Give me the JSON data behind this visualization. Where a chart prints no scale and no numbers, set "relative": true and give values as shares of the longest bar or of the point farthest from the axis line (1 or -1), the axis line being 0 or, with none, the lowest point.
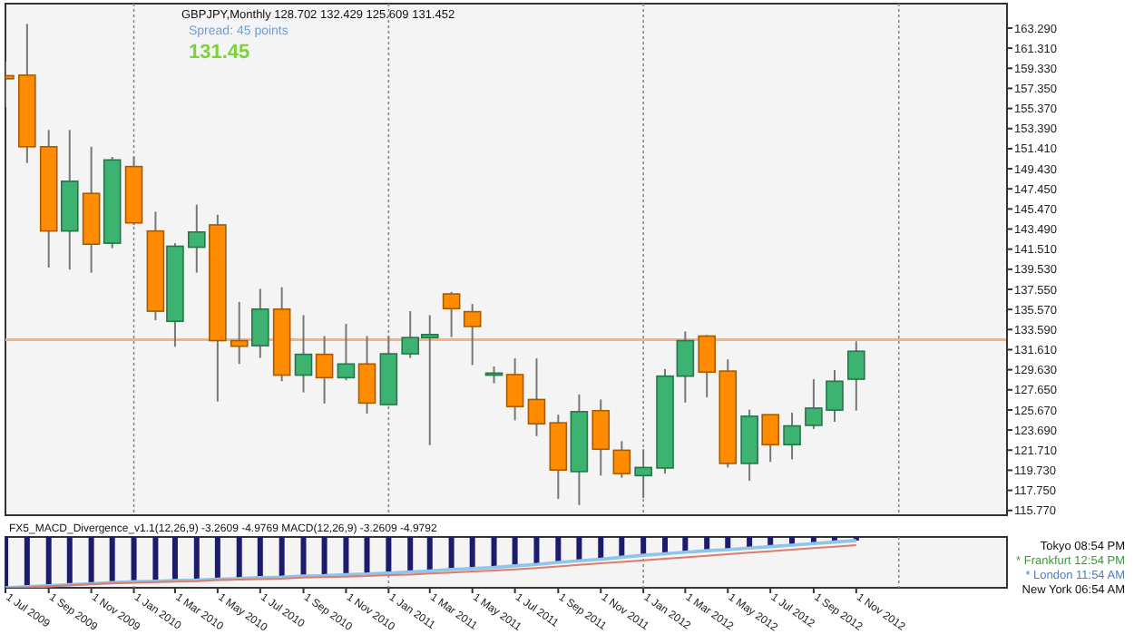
{
  "chart_data": [
    {
      "type": "candlestick",
      "title": "GBPJPY,Monthly 128.702 132.429 125.609 131.452",
      "annotations": [
        "Spread: 45 points",
        "131.45"
      ],
      "x": [
        "2009-07",
        "2009-08",
        "2009-09",
        "2009-10",
        "2009-11",
        "2009-12",
        "2010-01",
        "2010-02",
        "2010-03",
        "2010-04",
        "2010-05",
        "2010-06",
        "2010-07",
        "2010-08",
        "2010-09",
        "2010-10",
        "2010-11",
        "2010-12",
        "2011-01",
        "2011-02",
        "2011-03",
        "2011-04",
        "2011-05",
        "2011-06",
        "2011-07",
        "2011-08",
        "2011-09",
        "2011-10",
        "2011-11",
        "2011-12",
        "2012-01",
        "2012-02",
        "2012-03",
        "2012-04",
        "2012-05",
        "2012-06",
        "2012-07",
        "2012-08",
        "2012-09",
        "2012-10",
        "2012-11"
      ],
      "ohlc": [
        [
          158.6,
          160.0,
          155.5,
          158.3
        ],
        [
          158.65,
          163.7,
          150.0,
          151.6
        ],
        [
          151.6,
          153.25,
          139.7,
          143.3
        ],
        [
          143.3,
          153.25,
          139.5,
          148.2
        ],
        [
          147.0,
          151.6,
          139.2,
          142.0
        ],
        [
          142.1,
          150.6,
          141.6,
          150.3
        ],
        [
          149.65,
          150.6,
          143.9,
          144.1
        ],
        [
          143.3,
          145.2,
          134.5,
          135.4
        ],
        [
          134.4,
          142.1,
          131.9,
          141.8
        ],
        [
          141.7,
          145.9,
          139.2,
          143.2
        ],
        [
          143.9,
          144.9,
          126.5,
          132.5
        ],
        [
          132.5,
          136.3,
          130.2,
          131.95
        ],
        [
          132.0,
          137.6,
          130.8,
          135.6
        ],
        [
          135.6,
          137.75,
          128.5,
          129.1
        ],
        [
          129.1,
          135.0,
          127.4,
          131.15
        ],
        [
          131.15,
          132.95,
          126.3,
          128.85
        ],
        [
          128.85,
          134.15,
          128.6,
          130.2
        ],
        [
          130.2,
          132.95,
          125.3,
          126.35
        ],
        [
          126.2,
          132.95,
          126.1,
          131.2
        ],
        [
          131.2,
          135.4,
          130.8,
          132.8
        ],
        [
          132.8,
          135.0,
          122.2,
          133.1
        ],
        [
          137.1,
          137.3,
          132.85,
          135.65
        ],
        [
          135.35,
          136.1,
          130.1,
          133.9
        ],
        [
          129.1,
          129.95,
          128.3,
          129.3
        ],
        [
          129.15,
          130.75,
          124.65,
          126.0
        ],
        [
          126.7,
          130.75,
          123.1,
          124.3
        ],
        [
          124.4,
          125.2,
          116.9,
          119.75
        ],
        [
          119.6,
          127.2,
          116.3,
          125.5
        ],
        [
          125.6,
          126.7,
          119.2,
          121.8
        ],
        [
          121.7,
          122.6,
          119.0,
          119.4
        ],
        [
          119.2,
          121.8,
          117.0,
          120.0
        ],
        [
          119.95,
          129.7,
          119.4,
          129.0
        ],
        [
          129.0,
          133.4,
          126.4,
          132.5
        ],
        [
          132.95,
          133.05,
          126.9,
          129.4
        ],
        [
          129.5,
          130.65,
          120.0,
          120.4
        ],
        [
          120.4,
          125.7,
          118.7,
          125.05
        ],
        [
          125.2,
          125.2,
          120.55,
          122.25
        ],
        [
          122.25,
          125.4,
          120.8,
          124.1
        ],
        [
          124.15,
          128.7,
          123.8,
          125.85
        ],
        [
          125.65,
          129.6,
          124.5,
          128.5
        ],
        [
          128.702,
          132.429,
          125.609,
          131.452
        ]
      ],
      "colors": [
        "#ff8c00",
        "#ff8c00",
        "#ff8c00",
        "#3cb371",
        "#ff8c00",
        "#3cb371",
        "#ff8c00",
        "#ff8c00",
        "#3cb371",
        "#3cb371",
        "#ff8c00",
        "#ff8c00",
        "#3cb371",
        "#ff8c00",
        "#3cb371",
        "#ff8c00",
        "#3cb371",
        "#ff8c00",
        "#3cb371",
        "#3cb371",
        "#3cb371",
        "#ff8c00",
        "#ff8c00",
        "#3cb371",
        "#ff8c00",
        "#ff8c00",
        "#ff8c00",
        "#3cb371",
        "#ff8c00",
        "#ff8c00",
        "#3cb371",
        "#3cb371",
        "#3cb371",
        "#ff8c00",
        "#ff8c00",
        "#3cb371",
        "#ff8c00",
        "#3cb371",
        "#3cb371",
        "#3cb371",
        "#3cb371"
      ],
      "xlim": [
        "2009-07-01",
        "2013-06-05"
      ],
      "ylim": [
        115.3,
        165.7
      ],
      "yticks": [
        {
          "value": 115.77,
          "label": "115.770"
        },
        {
          "value": 117.75,
          "label": "117.750"
        },
        {
          "value": 119.73,
          "label": "119.730"
        },
        {
          "value": 121.71,
          "label": "121.710"
        },
        {
          "value": 123.69,
          "label": "123.690"
        },
        {
          "value": 125.67,
          "label": "125.670"
        },
        {
          "value": 127.65,
          "label": "127.650"
        },
        {
          "value": 129.63,
          "label": "129.630"
        },
        {
          "value": 131.61,
          "label": "131.610"
        },
        {
          "value": 133.59,
          "label": "133.590"
        },
        {
          "value": 135.57,
          "label": "135.570"
        },
        {
          "value": 137.55,
          "label": "137.550"
        },
        {
          "value": 139.53,
          "label": "139.530"
        },
        {
          "value": 141.51,
          "label": "141.510"
        },
        {
          "value": 143.49,
          "label": "143.490"
        },
        {
          "value": 145.47,
          "label": "145.470"
        },
        {
          "value": 147.45,
          "label": "147.450"
        },
        {
          "value": 149.43,
          "label": "149.430"
        },
        {
          "value": 151.41,
          "label": "151.410"
        },
        {
          "value": 153.39,
          "label": "153.390"
        },
        {
          "value": 155.37,
          "label": "155.370"
        },
        {
          "value": 157.35,
          "label": "157.350"
        },
        {
          "value": 159.33,
          "label": "159.330"
        },
        {
          "value": 161.31,
          "label": "161.310"
        },
        {
          "value": 163.29,
          "label": "163.290"
        }
      ],
      "ref_lines": [
        {
          "axis": "y",
          "value": 132.6,
          "color": "#f4b183"
        },
        {
          "axis": "x",
          "value": "2010-01-01"
        },
        {
          "axis": "x",
          "value": "2011-01-01"
        },
        {
          "axis": "x",
          "value": "2012-01-01"
        },
        {
          "axis": "x",
          "value": "2013-01-01"
        }
      ],
      "tick_labels": "y"
    },
    {
      "type": "bar",
      "title": "FX5_MACD_Divergence_v1.1(12,26,9) -3.2609 -4.9769 MACD(12,26,9) -3.2609 -4.9792",
      "relative": true,
      "annotations": [
        "Tokyo 08:54 PM",
        "* Frankfurt 12:54 PM",
        "* London 11:54 AM",
        "New York 06:54 AM"
      ],
      "x": [
        "2009-07",
        "2009-08",
        "2009-09",
        "2009-10",
        "2009-11",
        "2009-12",
        "2010-01",
        "2010-02",
        "2010-03",
        "2010-04",
        "2010-05",
        "2010-06",
        "2010-07",
        "2010-08",
        "2010-09",
        "2010-10",
        "2010-11",
        "2010-12",
        "2011-01",
        "2011-02",
        "2011-03",
        "2011-04",
        "2011-05",
        "2011-06",
        "2011-07",
        "2011-08",
        "2011-09",
        "2011-10",
        "2011-11",
        "2011-12",
        "2012-01",
        "2012-02",
        "2012-03",
        "2012-04",
        "2012-05",
        "2012-06",
        "2012-07",
        "2012-08",
        "2012-09",
        "2012-10",
        "2012-11"
      ],
      "series": [
        {
          "type": "bar",
          "color": "#1c1c6e",
          "values": [
            -1.0,
            -0.98,
            -0.96,
            -0.94,
            -0.92,
            -0.9,
            -0.88,
            -0.87,
            -0.86,
            -0.85,
            -0.83,
            -0.82,
            -0.8,
            -0.79,
            -0.77,
            -0.76,
            -0.74,
            -0.73,
            -0.71,
            -0.69,
            -0.67,
            -0.64,
            -0.62,
            -0.6,
            -0.57,
            -0.54,
            -0.5,
            -0.47,
            -0.44,
            -0.4,
            -0.36,
            -0.33,
            -0.3,
            -0.27,
            -0.25,
            -0.22,
            -0.19,
            -0.16,
            -0.13,
            -0.1,
            -0.07
          ]
        },
        {
          "type": "line",
          "color": "#8ec5e8",
          "values": [
            -1.0,
            -0.98,
            -0.96,
            -0.94,
            -0.92,
            -0.9,
            -0.88,
            -0.87,
            -0.86,
            -0.85,
            -0.83,
            -0.82,
            -0.8,
            -0.79,
            -0.77,
            -0.76,
            -0.74,
            -0.73,
            -0.71,
            -0.69,
            -0.67,
            -0.64,
            -0.62,
            -0.6,
            -0.57,
            -0.54,
            -0.5,
            -0.47,
            -0.44,
            -0.4,
            -0.36,
            -0.33,
            -0.3,
            -0.27,
            -0.25,
            -0.22,
            -0.19,
            -0.16,
            -0.13,
            -0.1,
            -0.07
          ]
        },
        {
          "type": "line",
          "color": "#e07a6a",
          "values": [
            -1.0,
            -0.99,
            -0.97,
            -0.95,
            -0.93,
            -0.91,
            -0.9,
            -0.89,
            -0.88,
            -0.87,
            -0.85,
            -0.84,
            -0.83,
            -0.82,
            -0.8,
            -0.79,
            -0.78,
            -0.77,
            -0.75,
            -0.74,
            -0.72,
            -0.7,
            -0.68,
            -0.66,
            -0.64,
            -0.61,
            -0.58,
            -0.55,
            -0.52,
            -0.49,
            -0.46,
            -0.43,
            -0.4,
            -0.37,
            -0.34,
            -0.31,
            -0.28,
            -0.25,
            -0.22,
            -0.19,
            -0.16
          ]
        }
      ],
      "xlim": [
        "2009-07-01",
        "2013-06-05"
      ],
      "xticks": [
        {
          "value": "2009-07-01",
          "label": "1 Jul 2009"
        },
        {
          "value": "2009-09-01",
          "label": "1 Sep 2009"
        },
        {
          "value": "2009-11-01",
          "label": "1 Nov 2009"
        },
        {
          "value": "2010-01-01",
          "label": "1 Jan 2010"
        },
        {
          "value": "2010-03-01",
          "label": "1 Mar 2010"
        },
        {
          "value": "2010-05-01",
          "label": "1 May 2010"
        },
        {
          "value": "2010-07-01",
          "label": "1 Jul 2010"
        },
        {
          "value": "2010-09-01",
          "label": "1 Sep 2010"
        },
        {
          "value": "2010-11-01",
          "label": "1 Nov 2010"
        },
        {
          "value": "2011-01-01",
          "label": "1 Jan 2011"
        },
        {
          "value": "2011-03-01",
          "label": "1 Mar 2011"
        },
        {
          "value": "2011-05-01",
          "label": "1 May 2011"
        },
        {
          "value": "2011-07-01",
          "label": "1 Jul 2011"
        },
        {
          "value": "2011-09-01",
          "label": "1 Sep 2011"
        },
        {
          "value": "2011-11-01",
          "label": "1 Nov 2011"
        },
        {
          "value": "2012-01-01",
          "label": "1 Jan 2012"
        },
        {
          "value": "2012-03-01",
          "label": "1 Mar 2012"
        },
        {
          "value": "2012-05-01",
          "label": "1 May 2012"
        },
        {
          "value": "2012-07-01",
          "label": "1 Jul 2012"
        },
        {
          "value": "2012-09-01",
          "label": "1 Sep 2012"
        },
        {
          "value": "2012-11-01",
          "label": "1 Nov 2012"
        }
      ],
      "ref_lines": [
        {
          "axis": "x",
          "value": "2010-01-01"
        },
        {
          "axis": "x",
          "value": "2011-01-01"
        },
        {
          "axis": "x",
          "value": "2012-01-01"
        },
        {
          "axis": "x",
          "value": "2013-01-01"
        }
      ],
      "tick_labels": "x"
    }
  ]
}
